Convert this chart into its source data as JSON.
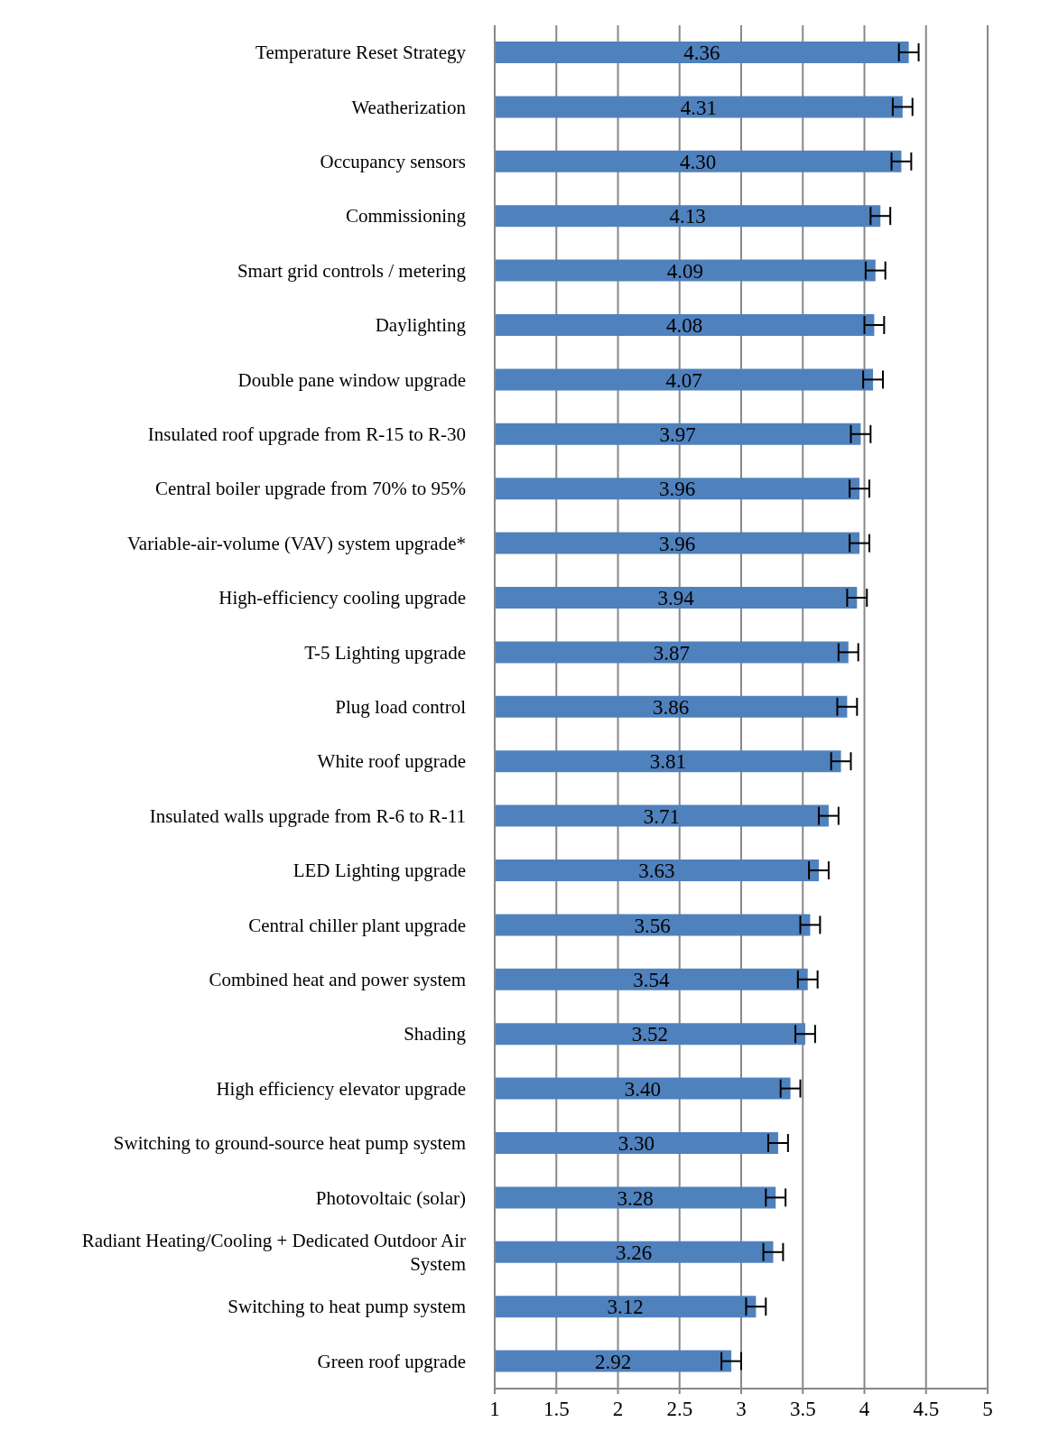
{
  "chart_data": {
    "type": "bar",
    "orientation": "horizontal",
    "categories": [
      "Temperature Reset Strategy",
      "Weatherization",
      "Occupancy sensors",
      "Commissioning",
      "Smart grid controls / metering",
      "Daylighting",
      "Double pane window upgrade",
      "Insulated roof upgrade from R-15 to R-30",
      "Central boiler upgrade from 70% to 95%",
      "Variable-air-volume  (VAV) system upgrade*",
      "High-efficiency cooling upgrade",
      "T-5 Lighting upgrade",
      "Plug load control",
      "White roof upgrade",
      "Insulated walls upgrade from R-6 to R-11",
      "LED Lighting upgrade",
      "Central chiller plant upgrade",
      "Combined heat and power  system",
      "Shading",
      "High efficiency elevator upgrade",
      "Switching to ground-source heat pump system",
      "Photovoltaic (solar)",
      "Radiant Heating/Cooling + Dedicated Outdoor Air System",
      "Switching to heat pump system",
      "Green roof upgrade"
    ],
    "values": [
      4.36,
      4.31,
      4.3,
      4.13,
      4.09,
      4.08,
      4.07,
      3.97,
      3.96,
      3.96,
      3.94,
      3.87,
      3.86,
      3.81,
      3.71,
      3.63,
      3.56,
      3.54,
      3.52,
      3.4,
      3.3,
      3.28,
      3.26,
      3.12,
      2.92
    ],
    "value_labels": [
      "4.36",
      "4.31",
      "4.30",
      "4.13",
      "4.09",
      "4.08",
      "4.07",
      "3.97",
      "3.96",
      "3.96",
      "3.94",
      "3.87",
      "3.86",
      "3.81",
      "3.71",
      "3.63",
      "3.56",
      "3.54",
      "3.52",
      "3.40",
      "3.30",
      "3.28",
      "3.26",
      "3.12",
      "2.92"
    ],
    "errors": [
      0.08,
      0.08,
      0.08,
      0.08,
      0.08,
      0.08,
      0.08,
      0.08,
      0.08,
      0.08,
      0.08,
      0.08,
      0.08,
      0.08,
      0.08,
      0.08,
      0.08,
      0.08,
      0.08,
      0.08,
      0.08,
      0.08,
      0.08,
      0.08,
      0.08
    ],
    "color": "#4f81bd",
    "xlim": [
      1,
      5
    ],
    "xticks": [
      1,
      1.5,
      2,
      2.5,
      3,
      3.5,
      4,
      4.5,
      5
    ],
    "grid": "x",
    "legend": false
  }
}
